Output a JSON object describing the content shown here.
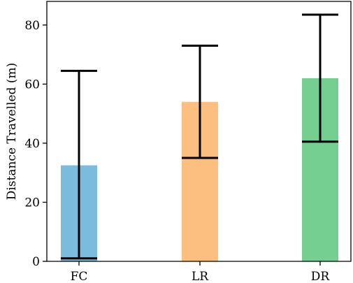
{
  "chart_data": {
    "type": "bar",
    "categories": [
      "FC",
      "LR",
      "DR"
    ],
    "values": [
      32.5,
      54,
      62
    ],
    "error_low": [
      1,
      35,
      40.5
    ],
    "error_high": [
      64.5,
      73,
      83.5
    ],
    "colors": [
      "#7bbcdc",
      "#fdbf80",
      "#75cf91"
    ],
    "title": "",
    "xlabel": "",
    "ylabel": "Distance Travelled (m)",
    "ylim": [
      0,
      88
    ],
    "yticks": [
      0,
      20,
      40,
      60,
      80
    ],
    "grid": false,
    "legend": "none"
  }
}
